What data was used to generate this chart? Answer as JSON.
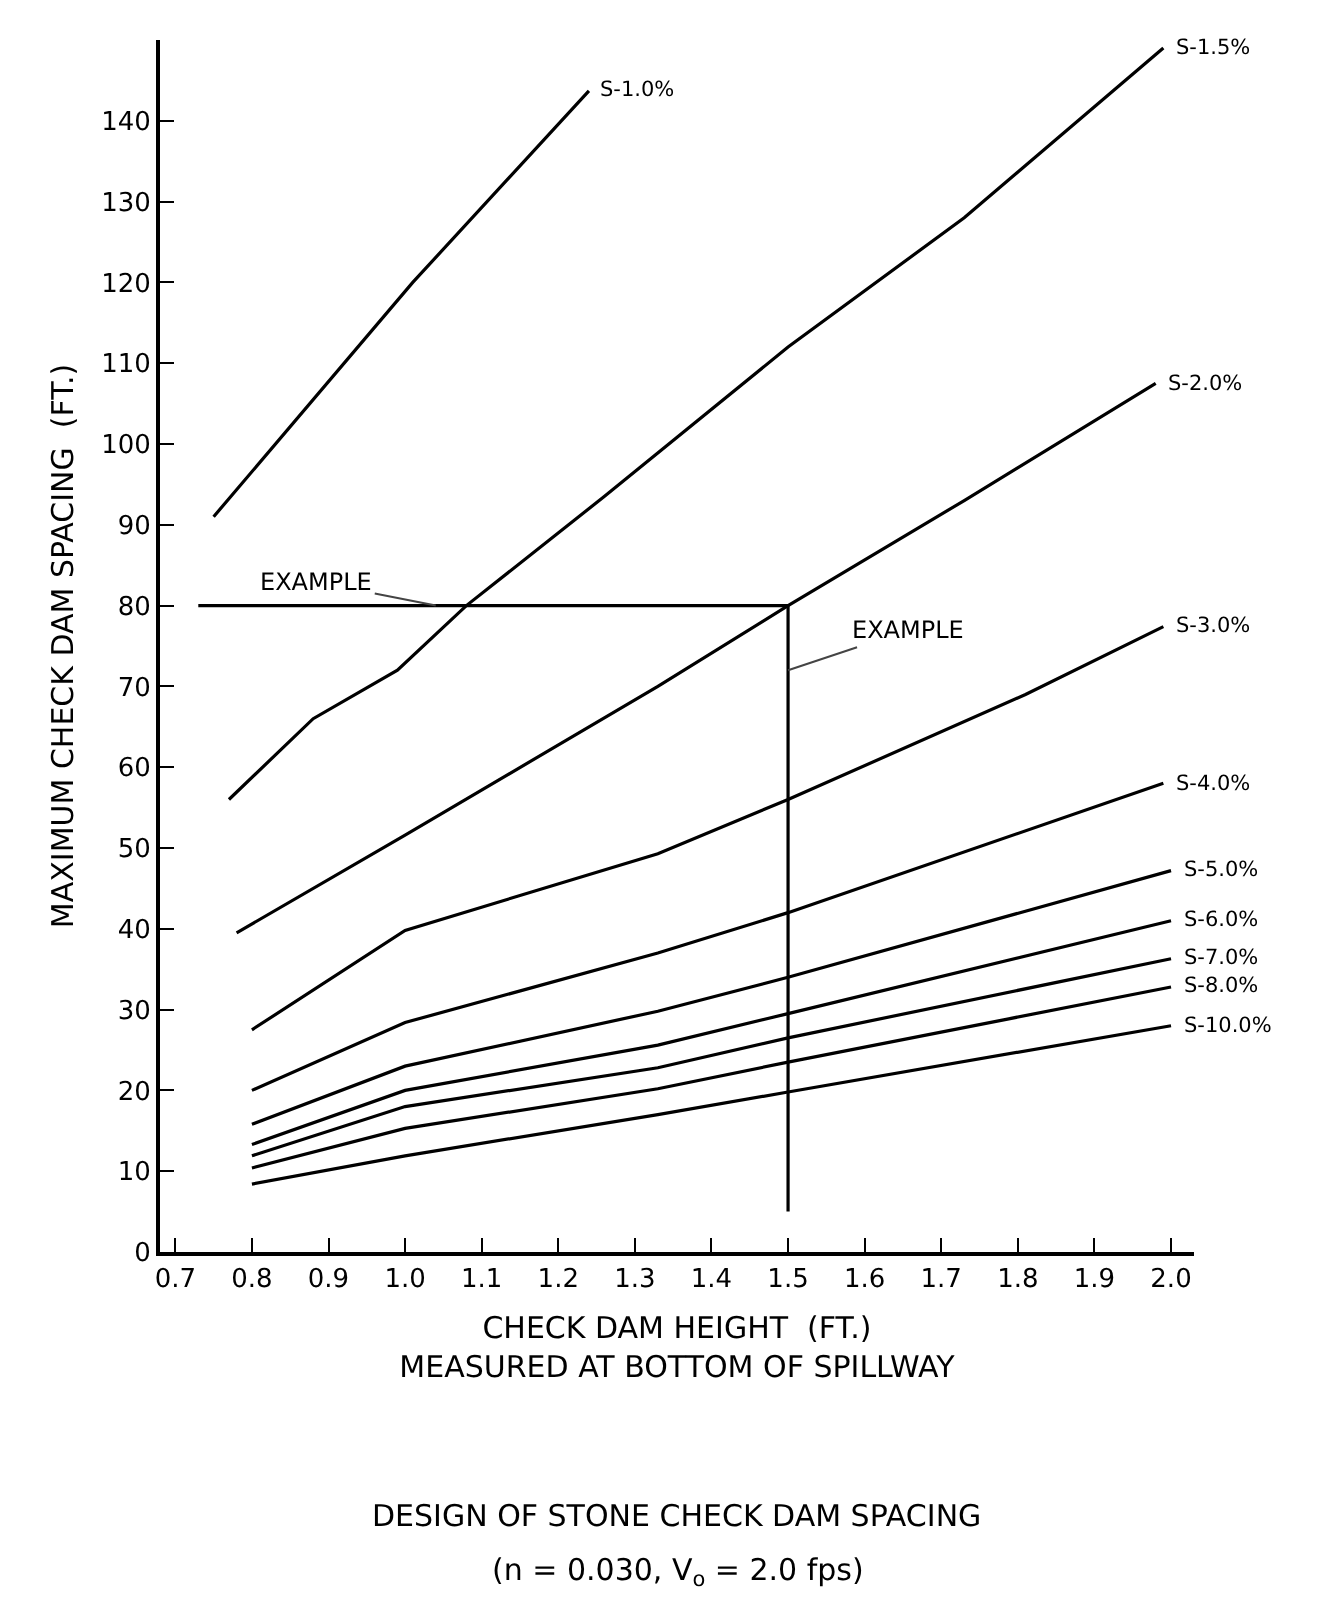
{
  "chart_data": {
    "type": "line",
    "title": "DESIGN OF STONE CHECK DAM SPACING",
    "subtitle": "(n = 0.030, V$_{o}$ = 2.0 fps)",
    "xlabel": "CHECK DAM HEIGHT  (FT.)\nMEASURED AT BOTTOM OF SPILLWAY",
    "ylabel": "MAXIMUM CHECK DAM SPACING  (FT.)",
    "xlim": [
      0.68,
      2.03
    ],
    "ylim": [
      0,
      150
    ],
    "xticks": [
      0.7,
      0.8,
      0.9,
      {
        "value": 1,
        "label": "1.0"
      },
      1.1,
      1.2,
      1.3,
      1.4,
      1.5,
      1.6,
      1.7,
      1.8,
      1.9,
      {
        "value": 2,
        "label": "2.0"
      }
    ],
    "yticks": [
      0,
      10,
      20,
      30,
      40,
      50,
      60,
      70,
      80,
      90,
      100,
      110,
      120,
      130,
      140
    ],
    "grid": false,
    "legend": false,
    "marker": "none",
    "line_style": "solid",
    "series": [
      {
        "name": "S-1.0%",
        "color": "#000000",
        "x": [
          0.75,
          1.01,
          1.24
        ],
        "values": [
          91,
          120,
          143.7
        ]
      },
      {
        "name": "S-1.5%",
        "color": "#000000",
        "x": [
          0.77,
          0.88,
          0.99,
          1.08,
          1.26,
          1.5,
          1.73,
          1.99
        ],
        "values": [
          56,
          66,
          72,
          80,
          93.5,
          112,
          128,
          149
        ]
      },
      {
        "name": "S-2.0%",
        "color": "#000000",
        "x": [
          0.78,
          1.0,
          1.33,
          1.5,
          1.73,
          1.98
        ],
        "values": [
          39.5,
          51.6,
          70,
          80,
          93,
          107.5
        ]
      },
      {
        "name": "S-3.0%",
        "color": "#000000",
        "x": [
          0.8,
          1.0,
          1.33,
          1.5,
          1.81,
          1.99
        ],
        "values": [
          27.5,
          39.8,
          49.3,
          56,
          69,
          77.4
        ]
      },
      {
        "name": "S-4.0%",
        "color": "#000000",
        "x": [
          0.8,
          1.0,
          1.33,
          1.5,
          1.99
        ],
        "values": [
          20,
          28.4,
          37,
          42,
          58
        ]
      },
      {
        "name": "S-5.0%",
        "color": "#000000",
        "x": [
          0.8,
          1.0,
          1.33,
          1.5,
          2.0
        ],
        "values": [
          15.8,
          23,
          29.8,
          34,
          47.2
        ]
      },
      {
        "name": "S-6.0%",
        "color": "#000000",
        "x": [
          0.8,
          1.0,
          1.33,
          1.5,
          2.0
        ],
        "values": [
          13.3,
          20,
          25.6,
          29.5,
          41
        ]
      },
      {
        "name": "S-7.0%",
        "color": "#000000",
        "x": [
          0.8,
          1.0,
          1.33,
          1.5,
          2.0
        ],
        "values": [
          11.9,
          18,
          22.8,
          26.5,
          36.3
        ]
      },
      {
        "name": "S-8.0%",
        "color": "#000000",
        "x": [
          0.8,
          1.0,
          1.33,
          1.5,
          2.0
        ],
        "values": [
          10.4,
          15.3,
          20.2,
          23.5,
          32.8
        ]
      },
      {
        "name": "S-10.0%",
        "color": "#000000",
        "x": [
          0.8,
          1.0,
          1.33,
          1.5,
          2.0
        ],
        "values": [
          8.4,
          11.9,
          17,
          19.8,
          28
        ]
      },
      {
        "color": "#000000",
        "x": [
          0.73,
          1.5,
          1.5
        ],
        "values": [
          80,
          80,
          5
        ]
      }
    ],
    "annotations": [
      {
        "text": "EXAMPLE",
        "x": 1.04,
        "y": 80
      },
      {
        "text": "EXAMPLE",
        "x": 1.5,
        "y": 72
      }
    ]
  }
}
